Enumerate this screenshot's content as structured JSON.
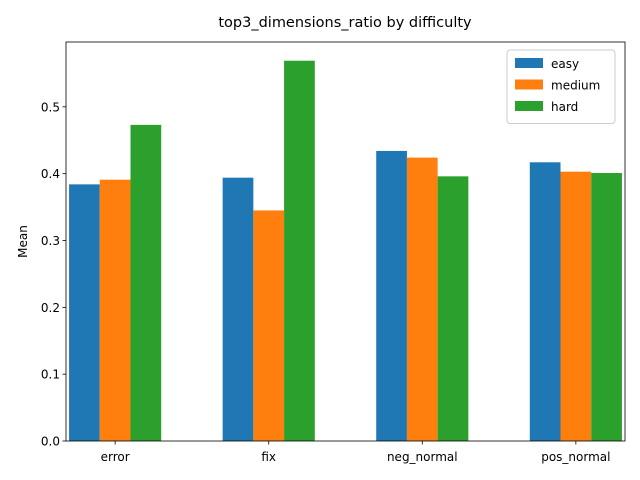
{
  "chart_data": {
    "type": "bar",
    "title": "top3_dimensions_ratio by difficulty",
    "xlabel": "",
    "ylabel": "Mean",
    "categories": [
      "error",
      "fix",
      "neg_normal",
      "pos_normal"
    ],
    "series": [
      {
        "name": "easy",
        "color": "#1f77b4",
        "values": [
          0.384,
          0.394,
          0.434,
          0.417
        ]
      },
      {
        "name": "medium",
        "color": "#ff7f0e",
        "values": [
          0.391,
          0.345,
          0.424,
          0.403
        ]
      },
      {
        "name": "hard",
        "color": "#2ca02c",
        "values": [
          0.473,
          0.569,
          0.396,
          0.401
        ]
      }
    ],
    "ylim": [
      0,
      0.597
    ],
    "yticks": [
      0.0,
      0.1,
      0.2,
      0.3,
      0.4,
      0.5
    ],
    "ytick_labels": [
      "0.0",
      "0.1",
      "0.2",
      "0.3",
      "0.4",
      "0.5"
    ],
    "grid": false,
    "legend_position": "top-right"
  }
}
